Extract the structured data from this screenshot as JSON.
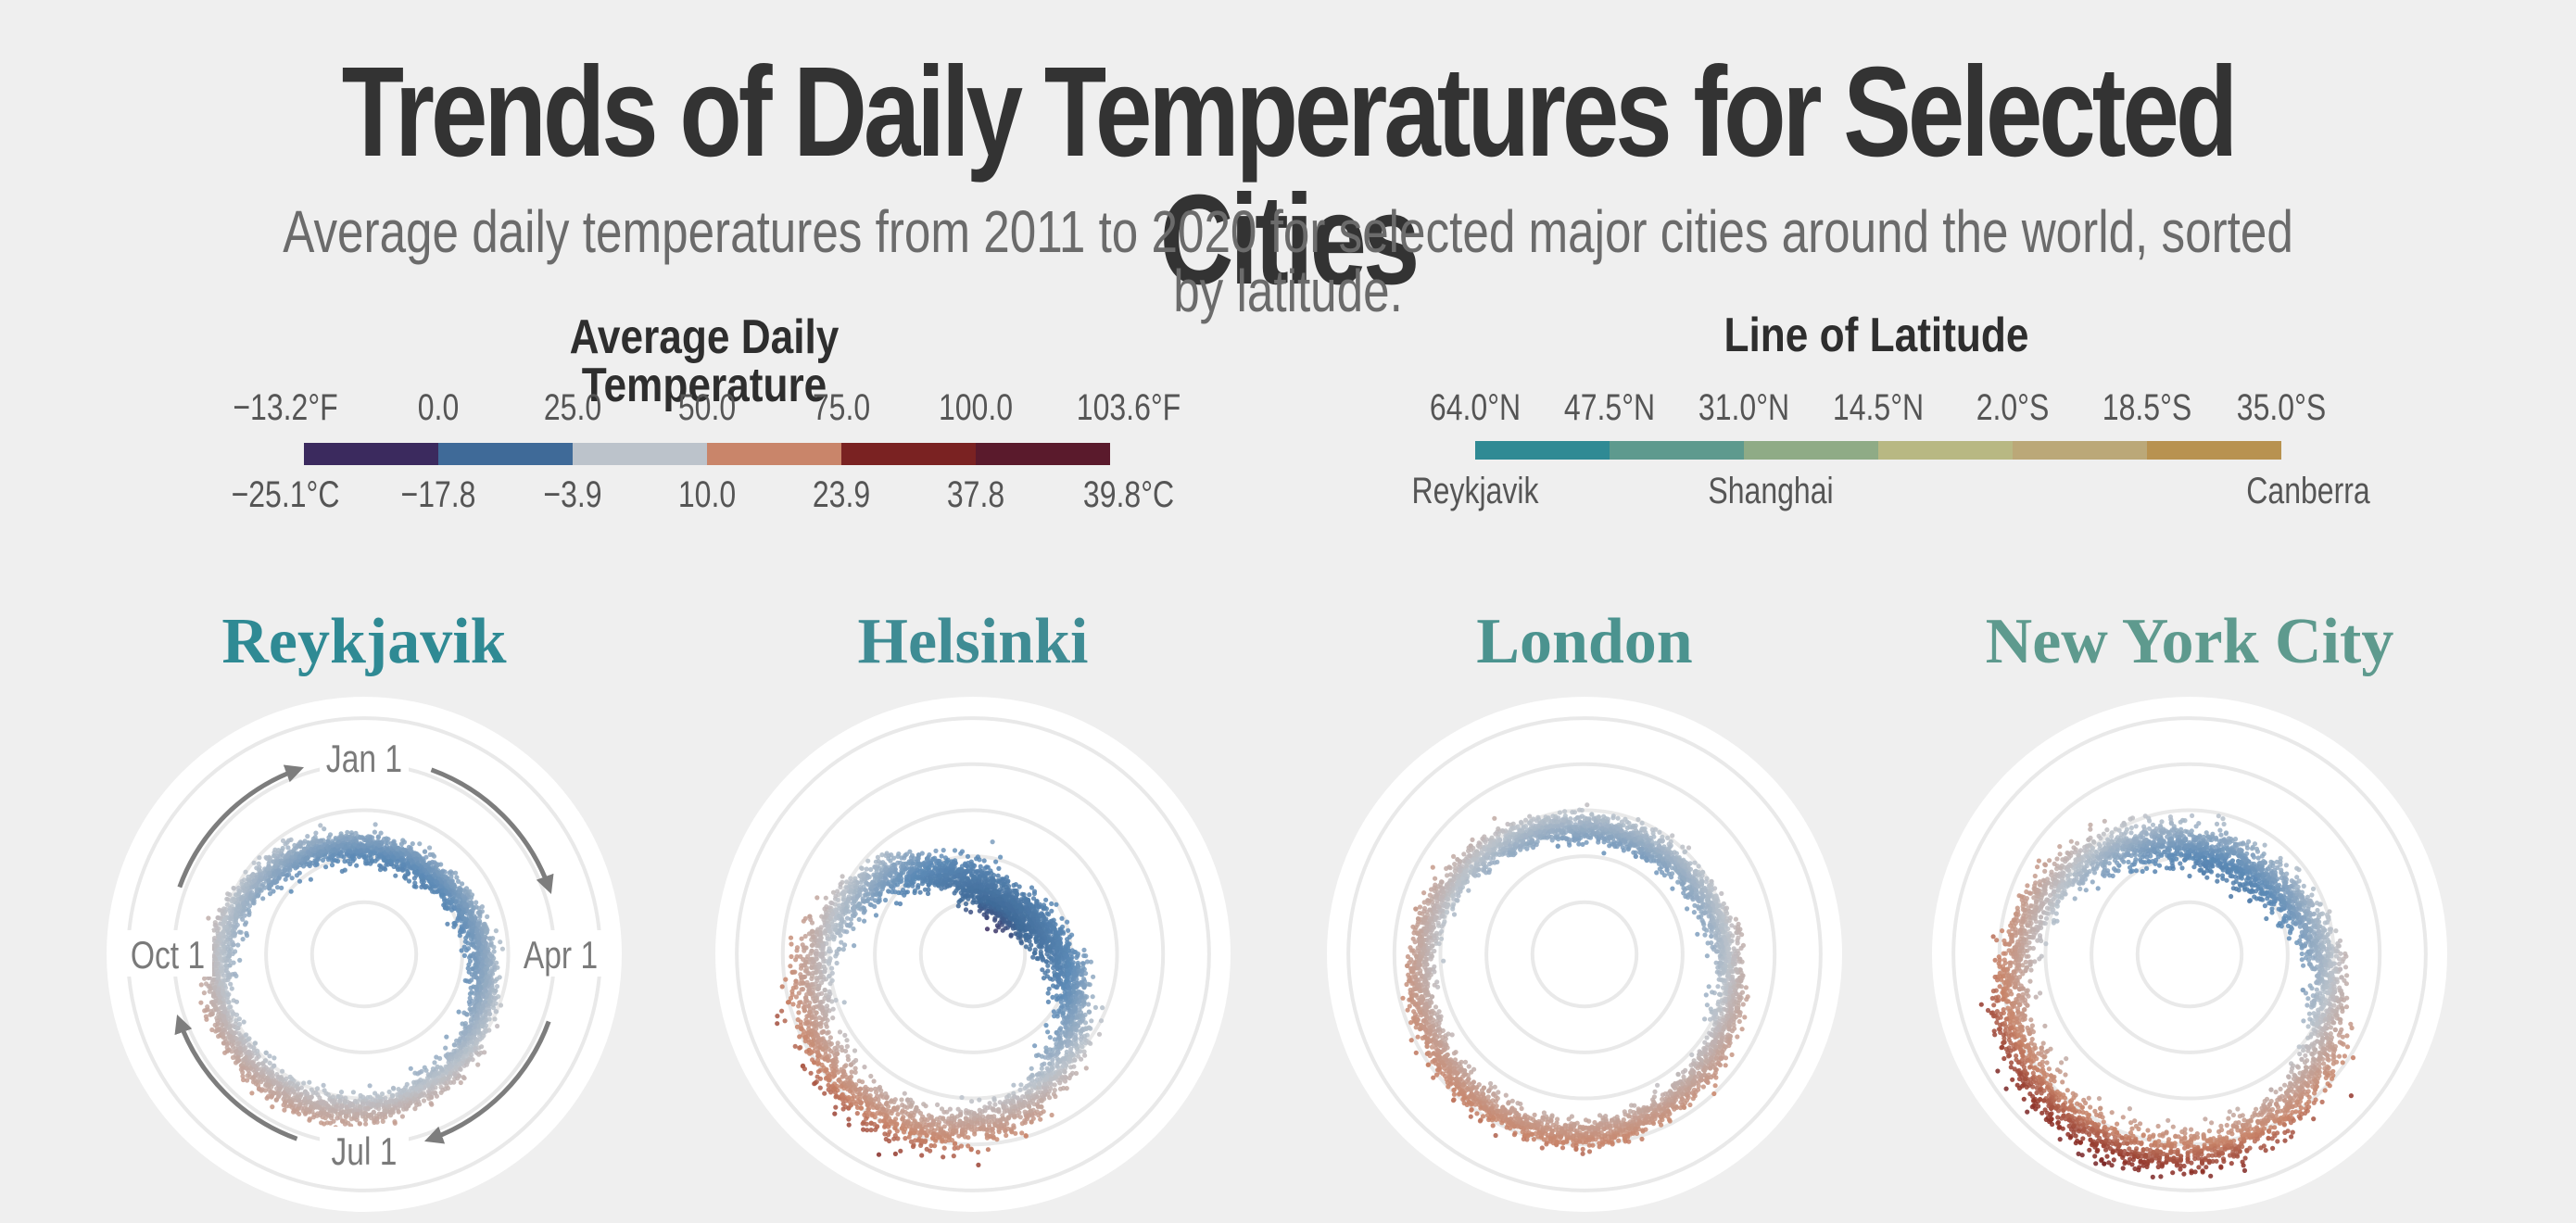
{
  "title": "Trends of Daily Temperatures for Selected Cities",
  "subtitle": "Average daily temperatures from 2011 to 2020 for selected major cities around the world, sorted by latitude.",
  "temp_legend": {
    "title": "Average Daily Temperature",
    "fahrenheit": [
      "−13.2°F",
      "0.0",
      "25.0",
      "50.0",
      "75.0",
      "100.0",
      "103.6°F"
    ],
    "celsius": [
      "−25.1°C",
      "−17.8",
      "−3.9",
      "10.0",
      "23.9",
      "37.8",
      "39.8°C"
    ],
    "colors": [
      "#3b2a5e",
      "#3f6a98",
      "#bcc3cb",
      "#c9856a",
      "#7a2222",
      "#5a1a2c"
    ]
  },
  "lat_legend": {
    "title": "Line of Latitude",
    "ticks": [
      "64.0°N",
      "47.5°N",
      "31.0°N",
      "14.5°N",
      "2.0°S",
      "18.5°S",
      "35.0°S"
    ],
    "cities": [
      "Reykjavik",
      "Shanghai",
      "Canberra"
    ],
    "colors": [
      "#2f8a94",
      "#5e9a8e",
      "#8fab86",
      "#b8b883",
      "#bba878",
      "#b89250"
    ]
  },
  "orientation": {
    "jan": "Jan 1",
    "apr": "Apr 1",
    "jul": "Jul 1",
    "oct": "Oct 1"
  },
  "chart_data": {
    "type": "scatter",
    "coordinate_system": "polar",
    "angle": "day of year (Jan 1 at top, clockwise)",
    "radius": "average daily temperature",
    "temperature_range_F": [
      -13.2,
      103.6
    ],
    "cities": [
      {
        "name": "Reykjavik",
        "color": "#2f8a94",
        "min_temp_F": 28,
        "max_temp_F": 58,
        "min_day": 30,
        "noise_F": 4
      },
      {
        "name": "Helsinki",
        "color": "#3f8c94",
        "min_temp_F": 5,
        "max_temp_F": 71,
        "min_day": 35,
        "noise_F": 6
      },
      {
        "name": "London",
        "color": "#4b938f",
        "min_temp_F": 40,
        "max_temp_F": 70,
        "min_day": 20,
        "noise_F": 4
      },
      {
        "name": "New York City",
        "color": "#5e9a8e",
        "min_temp_F": 28,
        "max_temp_F": 82,
        "min_day": 25,
        "noise_F": 6
      }
    ]
  }
}
